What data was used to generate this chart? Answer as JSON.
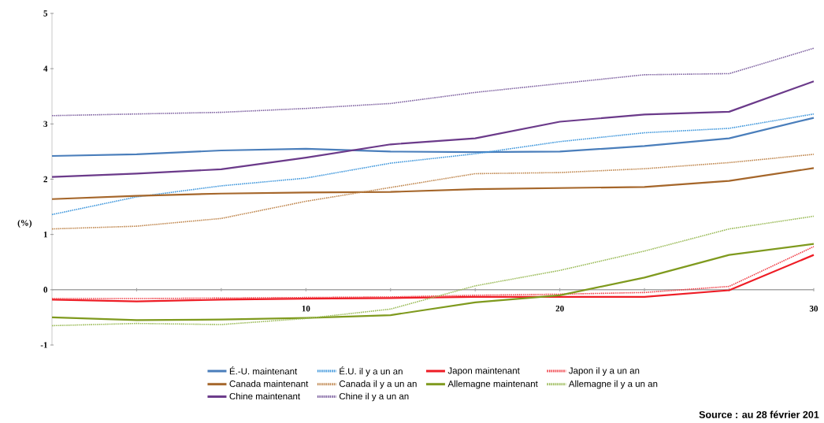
{
  "chart_data": {
    "type": "line",
    "ylabel": "(%)",
    "categories": [
      "3",
      null,
      null,
      "10",
      null,
      null,
      "20",
      null,
      null,
      "30"
    ],
    "ylim": [
      -1,
      5
    ],
    "yticks": [
      -1,
      0,
      1,
      2,
      3,
      4,
      5
    ],
    "legend": "bottom",
    "marker": "none",
    "annotations": [
      "Source : au 28 février 201"
    ],
    "series": [
      {
        "name": "É.-U. maintenant",
        "color": "#4a7ebb",
        "line_style": "solid",
        "values": [
          2.42,
          2.45,
          2.52,
          2.55,
          2.5,
          2.49,
          2.5,
          2.6,
          2.74,
          3.11
        ]
      },
      {
        "name": "É.U. il y a un an",
        "color": "#3f97dc",
        "line_style": "dotted",
        "values": [
          1.36,
          1.68,
          1.88,
          2.02,
          2.29,
          2.46,
          2.68,
          2.84,
          2.92,
          3.18
        ]
      },
      {
        "name": "Japon maintenant",
        "color": "#ee1c25",
        "line_style": "solid",
        "values": [
          -0.18,
          -0.21,
          -0.18,
          -0.16,
          -0.15,
          -0.13,
          -0.13,
          -0.13,
          -0.01,
          0.63
        ]
      },
      {
        "name": "Japon il y a un an",
        "color": "#f0444c",
        "line_style": "dotted",
        "values": [
          -0.16,
          -0.16,
          -0.15,
          -0.14,
          -0.13,
          -0.1,
          -0.08,
          -0.05,
          0.06,
          0.78
        ]
      },
      {
        "name": "Canada maintenant",
        "color": "#a5662a",
        "line_style": "solid",
        "values": [
          1.64,
          1.7,
          1.74,
          1.76,
          1.77,
          1.82,
          1.84,
          1.86,
          1.97,
          2.2
        ]
      },
      {
        "name": "Canada il y a un an",
        "color": "#c08850",
        "line_style": "dotted",
        "values": [
          1.1,
          1.15,
          1.29,
          1.6,
          1.85,
          2.1,
          2.12,
          2.19,
          2.3,
          2.45
        ]
      },
      {
        "name": "Allemagne maintenant",
        "color": "#7f9a1e",
        "line_style": "solid",
        "values": [
          -0.5,
          -0.55,
          -0.54,
          -0.51,
          -0.46,
          -0.23,
          -0.1,
          0.22,
          0.63,
          0.83
        ]
      },
      {
        "name": "Allemagne il y a un an",
        "color": "#9bbb59",
        "line_style": "dotted",
        "values": [
          -0.65,
          -0.61,
          -0.63,
          -0.52,
          -0.35,
          0.07,
          0.35,
          0.7,
          1.1,
          1.33
        ]
      },
      {
        "name": "Chine maintenant",
        "color": "#6b3a8a",
        "line_style": "solid",
        "values": [
          2.04,
          2.1,
          2.18,
          2.39,
          2.63,
          2.74,
          3.04,
          3.17,
          3.22,
          3.77
        ]
      },
      {
        "name": "Chine il y a un an",
        "color": "#8064a2",
        "line_style": "dotted",
        "values": [
          3.15,
          3.18,
          3.21,
          3.28,
          3.37,
          3.57,
          3.73,
          3.89,
          3.91,
          4.37
        ]
      }
    ]
  }
}
